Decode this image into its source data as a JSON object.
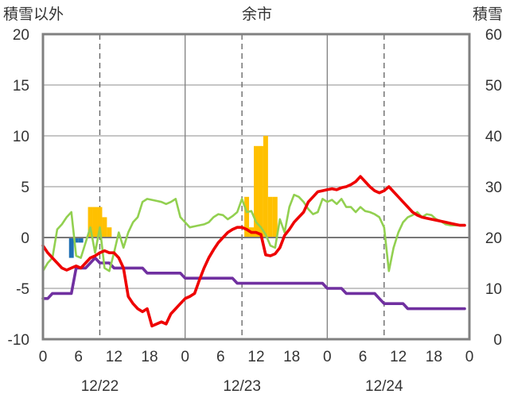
{
  "chart_data": {
    "type": "line",
    "title": "余市",
    "left_axis_label": "積雪以外",
    "right_axis_label": "積雪",
    "ylim_left": [
      -10,
      20
    ],
    "ylim_right": [
      0,
      60
    ],
    "y_ticks_left": [
      "20",
      "15",
      "10",
      "5",
      "0",
      "-5",
      "-10"
    ],
    "y_ticks_right": [
      "60",
      "50",
      "40",
      "30",
      "20",
      "10",
      "0"
    ],
    "x_ticks": [
      "0",
      "6",
      "12",
      "18",
      "0",
      "6",
      "12",
      "18",
      "0",
      "6",
      "12",
      "18",
      "0"
    ],
    "date_labels": [
      {
        "label": "12/22",
        "hour": 12
      },
      {
        "label": "12/23",
        "hour": 42
      },
      {
        "label": "12/24",
        "hour": 72
      }
    ],
    "grid": {
      "vertical_dashed_at_hours": [
        12,
        42,
        72
      ],
      "vertical_solid_at_hours": [
        30,
        60
      ]
    },
    "colors": {
      "bars_orange": "#FFC000",
      "bars_blue": "#1F6FB4",
      "red": "#EE0000",
      "green": "#92D050",
      "purple": "#7030A0",
      "frame": "#808080"
    },
    "bars_orange": {
      "x_hours": [
        10,
        11,
        12,
        13,
        14,
        43,
        44,
        45,
        46,
        47,
        48,
        49
      ],
      "values": [
        3.0,
        3.0,
        3.0,
        2.0,
        1.0,
        4.0,
        1.0,
        9.0,
        9.0,
        10.0,
        4.0,
        4.0
      ]
    },
    "bars_blue": {
      "x_hours": [
        6,
        7,
        8
      ],
      "values": [
        -2.0,
        -0.5,
        -0.5
      ]
    },
    "series": [
      {
        "color_key": "red",
        "axis": "left",
        "x_hours": [
          0,
          1,
          2,
          3,
          4,
          5,
          6,
          7,
          8,
          9,
          10,
          11,
          12,
          13,
          14,
          15,
          16,
          17,
          18,
          19,
          20,
          21,
          22,
          23,
          24,
          25,
          26,
          27,
          28,
          29,
          30,
          31,
          32,
          33,
          34,
          35,
          36,
          37,
          38,
          39,
          40,
          41,
          42,
          43,
          44,
          45,
          46,
          47,
          48,
          49,
          50,
          51,
          52,
          53,
          54,
          55,
          56,
          57,
          58,
          59,
          60,
          61,
          62,
          63,
          64,
          65,
          66,
          67,
          68,
          69,
          70,
          71,
          72,
          73,
          74,
          75,
          76,
          77,
          78,
          79,
          80,
          81,
          82,
          83,
          84,
          85,
          86,
          87,
          88,
          89
        ],
        "values": [
          -0.8,
          -1.5,
          -2.0,
          -2.5,
          -3.0,
          -3.2,
          -3.0,
          -2.8,
          -3.0,
          -2.5,
          -2.0,
          -1.8,
          -1.5,
          -1.3,
          -1.5,
          -1.5,
          -2.0,
          -3.0,
          -5.8,
          -6.5,
          -7.0,
          -7.3,
          -7.0,
          -8.7,
          -8.5,
          -8.3,
          -8.5,
          -7.5,
          -7.0,
          -6.5,
          -6.0,
          -5.8,
          -5.5,
          -4.2,
          -3.0,
          -2.0,
          -1.2,
          -0.5,
          0.0,
          0.5,
          0.8,
          1.0,
          1.0,
          0.8,
          0.5,
          0.5,
          0.3,
          -1.7,
          -1.8,
          -1.6,
          -1.0,
          0.2,
          0.8,
          1.5,
          2.0,
          2.5,
          3.5,
          4.0,
          4.5,
          4.6,
          4.7,
          4.8,
          4.7,
          4.9,
          5.0,
          5.2,
          5.5,
          6.0,
          5.5,
          5.0,
          4.6,
          4.4,
          4.6,
          5.0,
          4.5,
          4.0,
          3.5,
          3.0,
          2.5,
          2.2,
          2.0,
          1.9,
          1.8,
          1.7,
          1.6,
          1.5,
          1.4,
          1.3,
          1.2,
          1.2
        ]
      },
      {
        "color_key": "green",
        "axis": "left",
        "x_hours": [
          0,
          1,
          2,
          3,
          4,
          5,
          6,
          7,
          8,
          9,
          10,
          11,
          12,
          13,
          14,
          15,
          16,
          17,
          18,
          19,
          20,
          21,
          22,
          23,
          24,
          25,
          26,
          27,
          28,
          29,
          30,
          31,
          32,
          33,
          34,
          35,
          36,
          37,
          38,
          39,
          40,
          41,
          42,
          43,
          44,
          45,
          46,
          47,
          48,
          49,
          50,
          51,
          52,
          53,
          54,
          55,
          56,
          57,
          58,
          59,
          60,
          61,
          62,
          63,
          64,
          65,
          66,
          67,
          68,
          69,
          70,
          71,
          72,
          73,
          74,
          75,
          76,
          77,
          78,
          79,
          80,
          81,
          82,
          83,
          84,
          85,
          86,
          87,
          88,
          89
        ],
        "values": [
          -3.3,
          -2.5,
          -2.0,
          0.8,
          1.3,
          2.0,
          2.5,
          -1.8,
          -2.0,
          -0.5,
          1.0,
          -1.5,
          1.0,
          -3.0,
          -3.3,
          -1.5,
          0.5,
          -1.0,
          0.5,
          1.5,
          2.0,
          3.5,
          3.8,
          3.7,
          3.6,
          3.5,
          3.3,
          3.5,
          3.8,
          2.0,
          1.5,
          1.0,
          1.1,
          1.2,
          1.3,
          1.5,
          2.0,
          2.3,
          2.2,
          1.8,
          2.1,
          2.5,
          3.8,
          2.5,
          2.6,
          1.5,
          1.0,
          0.3,
          -0.8,
          -1.0,
          1.8,
          0.5,
          3.0,
          4.2,
          4.0,
          3.5,
          2.8,
          2.3,
          2.5,
          3.8,
          3.5,
          3.7,
          3.3,
          3.8,
          3.0,
          3.0,
          2.5,
          3.0,
          2.6,
          2.5,
          2.3,
          2.0,
          1.0,
          -3.3,
          -1.0,
          0.5,
          1.5,
          2.0,
          2.2,
          2.5,
          2.0,
          2.3,
          2.2,
          1.8,
          1.6,
          1.3,
          1.2,
          1.2,
          1.2,
          1.2
        ]
      },
      {
        "color_key": "purple",
        "axis": "right",
        "x_hours": [
          0,
          1,
          2,
          3,
          4,
          5,
          6,
          7,
          8,
          9,
          10,
          11,
          12,
          13,
          14,
          15,
          16,
          17,
          18,
          19,
          20,
          21,
          22,
          23,
          24,
          25,
          26,
          27,
          28,
          29,
          30,
          31,
          32,
          33,
          34,
          35,
          36,
          37,
          38,
          39,
          40,
          41,
          42,
          43,
          44,
          45,
          46,
          47,
          48,
          49,
          50,
          51,
          52,
          53,
          54,
          55,
          56,
          57,
          58,
          59,
          60,
          61,
          62,
          63,
          64,
          65,
          66,
          67,
          68,
          69,
          70,
          71,
          72,
          73,
          74,
          75,
          76,
          77,
          78,
          79,
          80,
          81,
          82,
          83,
          84,
          85,
          86,
          87,
          88,
          89
        ],
        "values": [
          8,
          8,
          9,
          9,
          9,
          9,
          9,
          14,
          14,
          14,
          15,
          16,
          15,
          15,
          15,
          14,
          14,
          14,
          14,
          14,
          14,
          14,
          13,
          13,
          13,
          13,
          13,
          13,
          13,
          13,
          12,
          12,
          12,
          12,
          12,
          12,
          12,
          12,
          12,
          12,
          12,
          11,
          11,
          11,
          11,
          11,
          11,
          11,
          11,
          11,
          11,
          11,
          11,
          11,
          11,
          11,
          11,
          11,
          11,
          11,
          10,
          10,
          10,
          10,
          9,
          9,
          9,
          9,
          9,
          9,
          9,
          8,
          7,
          7,
          7,
          7,
          7,
          6,
          6,
          6,
          6,
          6,
          6,
          6,
          6,
          6,
          6,
          6,
          6,
          6
        ]
      }
    ]
  }
}
